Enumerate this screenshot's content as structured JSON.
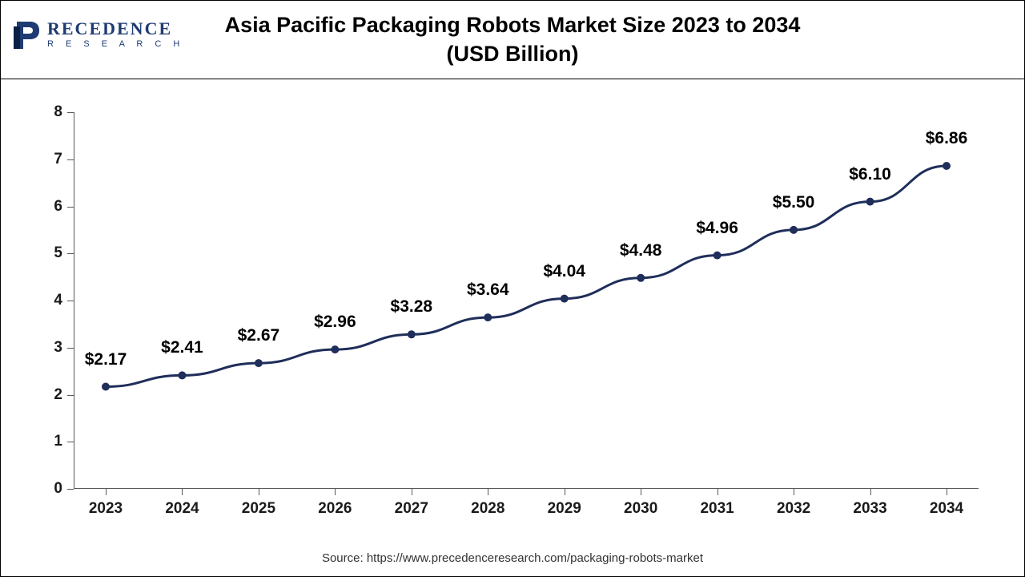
{
  "logo": {
    "text_part_1": "RECEDENCE",
    "text_part_2": "R E S E A R C H",
    "icon_color_primary": "#1f3b73",
    "icon_color_secondary": "#0a1f44",
    "text_color": "#1f3b73"
  },
  "header": {
    "title_line_1": "Asia Pacific Packaging Robots Market Size 2023 to 2034",
    "title_line_2": "(USD Billion)",
    "title_fontsize": 27,
    "title_fontweight": 700,
    "title_color": "#000000"
  },
  "chart": {
    "type": "line",
    "background_color": "#ffffff",
    "border_color": "#000000",
    "axis_color": "#595959",
    "line_color": "#1f2e5a",
    "line_width": 3,
    "marker_color": "#1f2e5a",
    "marker_radius": 5,
    "label_fontsize": 21,
    "tick_fontsize": 19,
    "tick_fontweight": 700,
    "ylim": [
      0,
      8
    ],
    "ytick_step": 1,
    "yticks": [
      0,
      1,
      2,
      3,
      4,
      5,
      6,
      7,
      8
    ],
    "categories": [
      "2023",
      "2024",
      "2025",
      "2026",
      "2027",
      "2028",
      "2029",
      "2030",
      "2031",
      "2032",
      "2033",
      "2034"
    ],
    "values": [
      2.17,
      2.41,
      2.67,
      2.96,
      3.28,
      3.64,
      4.04,
      4.48,
      4.96,
      5.5,
      6.1,
      6.86
    ],
    "value_labels": [
      "$2.17",
      "$2.41",
      "$2.67",
      "$2.96",
      "$3.28",
      "$3.64",
      "$4.04",
      "$4.48",
      "$4.96",
      "$5.50",
      "$6.10",
      "$6.86"
    ],
    "label_offset_y": 22
  },
  "source": {
    "prefix": "Source: ",
    "url": "https://www.precedenceresearch.com/packaging-robots-market",
    "fontsize": 15,
    "color": "#333333"
  }
}
